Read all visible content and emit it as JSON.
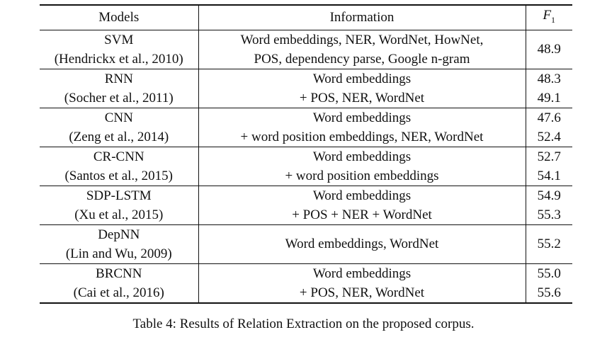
{
  "table": {
    "headers": {
      "models": "Models",
      "information": "Information",
      "f1_letter": "F",
      "f1_sub": "1"
    },
    "rows": [
      {
        "model": "SVM",
        "citation": "(Hendrickx et al., 2010)",
        "info": [
          "Word embeddings, NER, WordNet, HowNet,",
          "POS, dependency parse, Google n-gram"
        ],
        "f1": [
          "48.9"
        ]
      },
      {
        "model": "RNN",
        "citation": "(Socher et al., 2011)",
        "info": [
          "Word embeddings",
          "+ POS, NER, WordNet"
        ],
        "f1": [
          "48.3",
          "49.1"
        ]
      },
      {
        "model": "CNN",
        "citation": "(Zeng et al., 2014)",
        "info": [
          "Word embeddings",
          "+ word position embeddings, NER, WordNet"
        ],
        "f1": [
          "47.6",
          "52.4"
        ]
      },
      {
        "model": "CR-CNN",
        "citation": "(Santos et al., 2015)",
        "info": [
          "Word embeddings",
          "+ word position embeddings"
        ],
        "f1": [
          "52.7",
          "54.1"
        ]
      },
      {
        "model": "SDP-LSTM",
        "citation": "(Xu et al., 2015)",
        "info": [
          "Word embeddings",
          "+ POS + NER + WordNet"
        ],
        "f1": [
          "54.9",
          "55.3"
        ]
      },
      {
        "model": "DepNN",
        "citation": "(Lin and Wu, 2009)",
        "info": [
          "Word embeddings, WordNet"
        ],
        "f1": [
          "55.2"
        ]
      },
      {
        "model": "BRCNN",
        "citation": "(Cai et al., 2016)",
        "info": [
          "Word embeddings",
          "+ POS, NER, WordNet"
        ],
        "f1": [
          "55.0",
          "55.6"
        ]
      }
    ]
  },
  "caption": "Table 4: Results of Relation Extraction on the proposed corpus."
}
